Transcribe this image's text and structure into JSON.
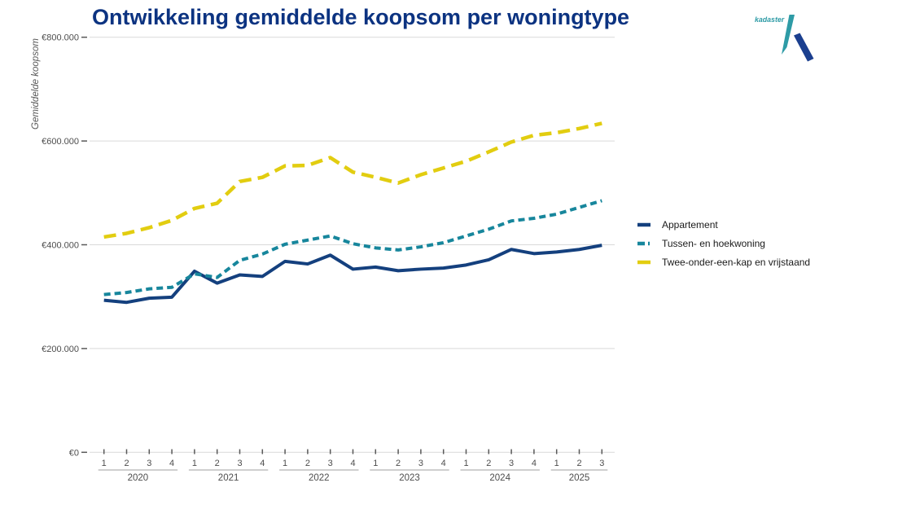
{
  "title": "Ontwikkeling gemiddelde koopsom per woningtype",
  "logo": {
    "text": "kadaster",
    "teal": "#2e9ba6",
    "navy": "#1b3f8f"
  },
  "axes": {
    "y_label": "Gemiddelde koopsom",
    "y_ticks": [
      {
        "label": "€0",
        "value": 0
      },
      {
        "label": "€200.000",
        "value": 200000
      },
      {
        "label": "€400.000",
        "value": 400000
      },
      {
        "label": "€600.000",
        "value": 600000
      },
      {
        "label": "€800.000",
        "value": 800000
      }
    ]
  },
  "chart_data": {
    "type": "line",
    "title": "Ontwikkeling gemiddelde koopsom per woningtype",
    "ylabel": "Gemiddelde koopsom",
    "ylim": [
      0,
      800000
    ],
    "grid": true,
    "legend_position": "right",
    "x_groups": [
      {
        "year": "2020",
        "quarters": [
          "1",
          "2",
          "3",
          "4"
        ]
      },
      {
        "year": "2021",
        "quarters": [
          "1",
          "2",
          "3",
          "4"
        ]
      },
      {
        "year": "2022",
        "quarters": [
          "1",
          "2",
          "3",
          "4"
        ]
      },
      {
        "year": "2023",
        "quarters": [
          "1",
          "2",
          "3",
          "4"
        ]
      },
      {
        "year": "2024",
        "quarters": [
          "1",
          "2",
          "3",
          "4"
        ]
      },
      {
        "year": "2025",
        "quarters": [
          "1",
          "2",
          "3"
        ]
      }
    ],
    "series": [
      {
        "name": "Appartement",
        "color": "#14407e",
        "dash": null,
        "legend_dash": null,
        "width": 4,
        "values": [
          293000,
          289000,
          297000,
          299000,
          349000,
          326000,
          342000,
          339000,
          368000,
          363000,
          380000,
          353000,
          357000,
          350000,
          353000,
          355000,
          361000,
          371000,
          391000,
          383000,
          386000,
          391000,
          399000
        ]
      },
      {
        "name": "Tussen- en hoekwoning",
        "color": "#17869c",
        "dash": "8 5",
        "legend_dash": "9 4 2",
        "width": 4,
        "values": [
          304000,
          308000,
          315000,
          318000,
          344000,
          337000,
          370000,
          382000,
          401000,
          409000,
          417000,
          402000,
          394000,
          390000,
          396000,
          404000,
          417000,
          430000,
          446000,
          451000,
          459000,
          472000,
          485000
        ]
      },
      {
        "name": "Twee-onder-een-kap en vrijstaand",
        "color": "#e2cd10",
        "dash": "15 8",
        "legend_dash": null,
        "width": 4.5,
        "values": [
          415000,
          422000,
          433000,
          447000,
          470000,
          480000,
          522000,
          530000,
          552000,
          553000,
          568000,
          540000,
          530000,
          519000,
          535000,
          548000,
          561000,
          579000,
          598000,
          611000,
          616000,
          624000,
          634000
        ]
      }
    ]
  }
}
